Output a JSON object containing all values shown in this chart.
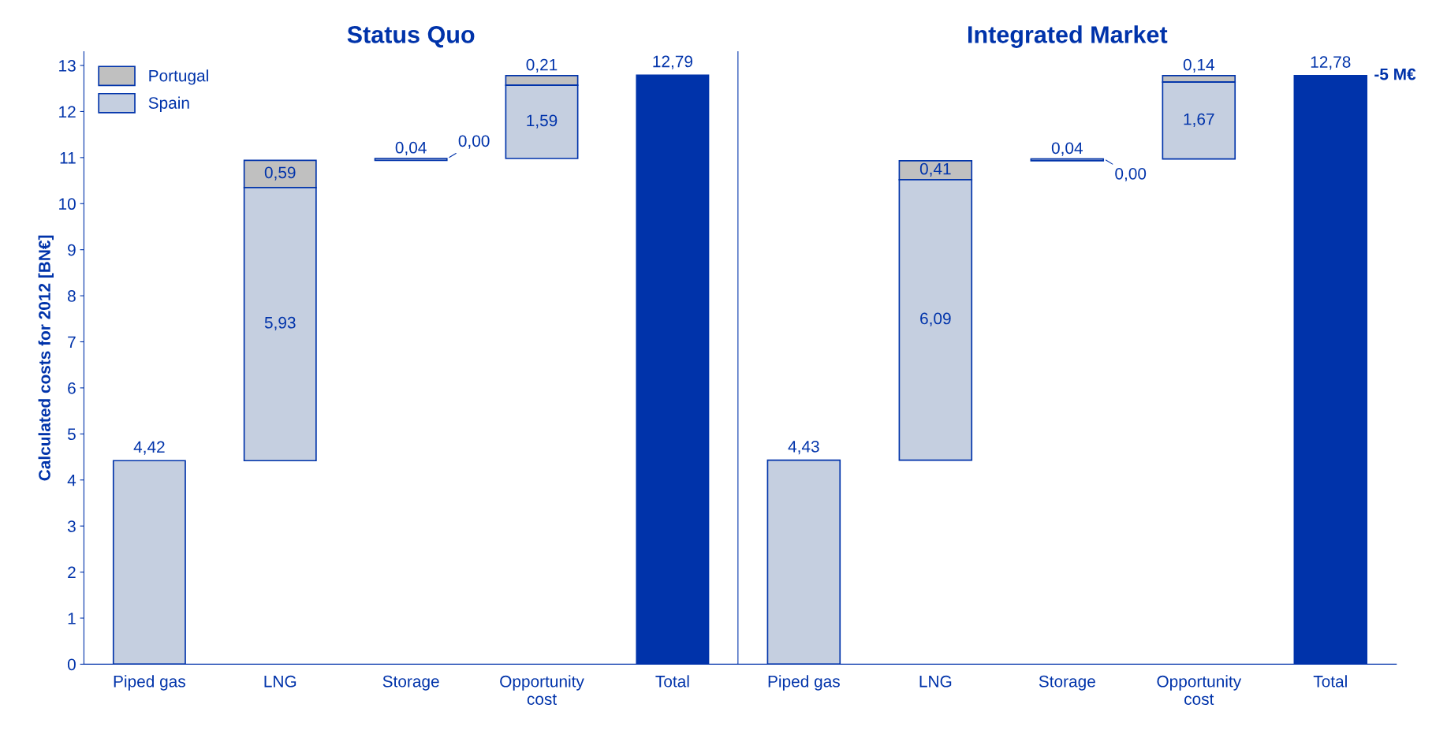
{
  "chart_data": [
    {
      "type": "bar",
      "title": "Status Quo",
      "ylabel": "Calculated costs for 2012 [BN€]",
      "categories": [
        "Piped gas",
        "LNG",
        "Storage",
        "Opportunity\ncost",
        "Total"
      ],
      "ylim": [
        0,
        13.3
      ],
      "yticks": [
        0,
        1,
        2,
        3,
        4,
        5,
        6,
        7,
        8,
        9,
        10,
        11,
        12,
        13
      ],
      "legend": "top left",
      "series": [
        {
          "name": "Portugal",
          "color": "#c0c0c0",
          "base": [
            null,
            10.35,
            10.98,
            12.57,
            null
          ],
          "values": [
            null,
            0.59,
            0.0,
            0.21,
            null
          ],
          "value_labels": [
            null,
            "0,59",
            "0,00",
            "0,21",
            null
          ]
        },
        {
          "name": "Spain",
          "color": "#c5cfe0",
          "base": [
            0,
            4.42,
            10.94,
            10.98,
            null
          ],
          "values": [
            4.42,
            5.93,
            0.04,
            1.59,
            null
          ],
          "value_labels": [
            "4,42",
            "5,93",
            "0,04",
            "1,59",
            null
          ]
        },
        {
          "color": "#0033aa",
          "base": [
            null,
            null,
            null,
            null,
            0
          ],
          "values": [
            null,
            null,
            null,
            null,
            12.79
          ],
          "value_labels": [
            null,
            null,
            null,
            null,
            "12,79"
          ]
        }
      ]
    },
    {
      "type": "bar",
      "title": "Integrated Market",
      "categories": [
        "Piped gas",
        "LNG",
        "Storage",
        "Opportunity\ncost",
        "Total"
      ],
      "ylim": [
        0,
        13.3
      ],
      "tick_labels": "x",
      "annotations": [
        {
          "text": "-5 M€",
          "x": "Total",
          "y": 12.78
        }
      ],
      "series": [
        {
          "color": "#c0c0c0",
          "base": [
            null,
            10.52,
            10.97,
            12.64,
            null
          ],
          "values": [
            null,
            0.41,
            0.0,
            0.14,
            null
          ],
          "value_labels": [
            null,
            "0,41",
            "0,00",
            "0,14",
            null
          ]
        },
        {
          "color": "#c5cfe0",
          "base": [
            0,
            4.43,
            10.93,
            10.97,
            null
          ],
          "values": [
            4.43,
            6.09,
            0.04,
            1.67,
            null
          ],
          "value_labels": [
            "4,43",
            "6,09",
            "0,04",
            "1,67",
            null
          ]
        },
        {
          "color": "#0033aa",
          "base": [
            null,
            null,
            null,
            null,
            0
          ],
          "values": [
            null,
            null,
            null,
            null,
            12.78
          ],
          "value_labels": [
            null,
            null,
            null,
            null,
            "12,78"
          ]
        }
      ]
    }
  ]
}
